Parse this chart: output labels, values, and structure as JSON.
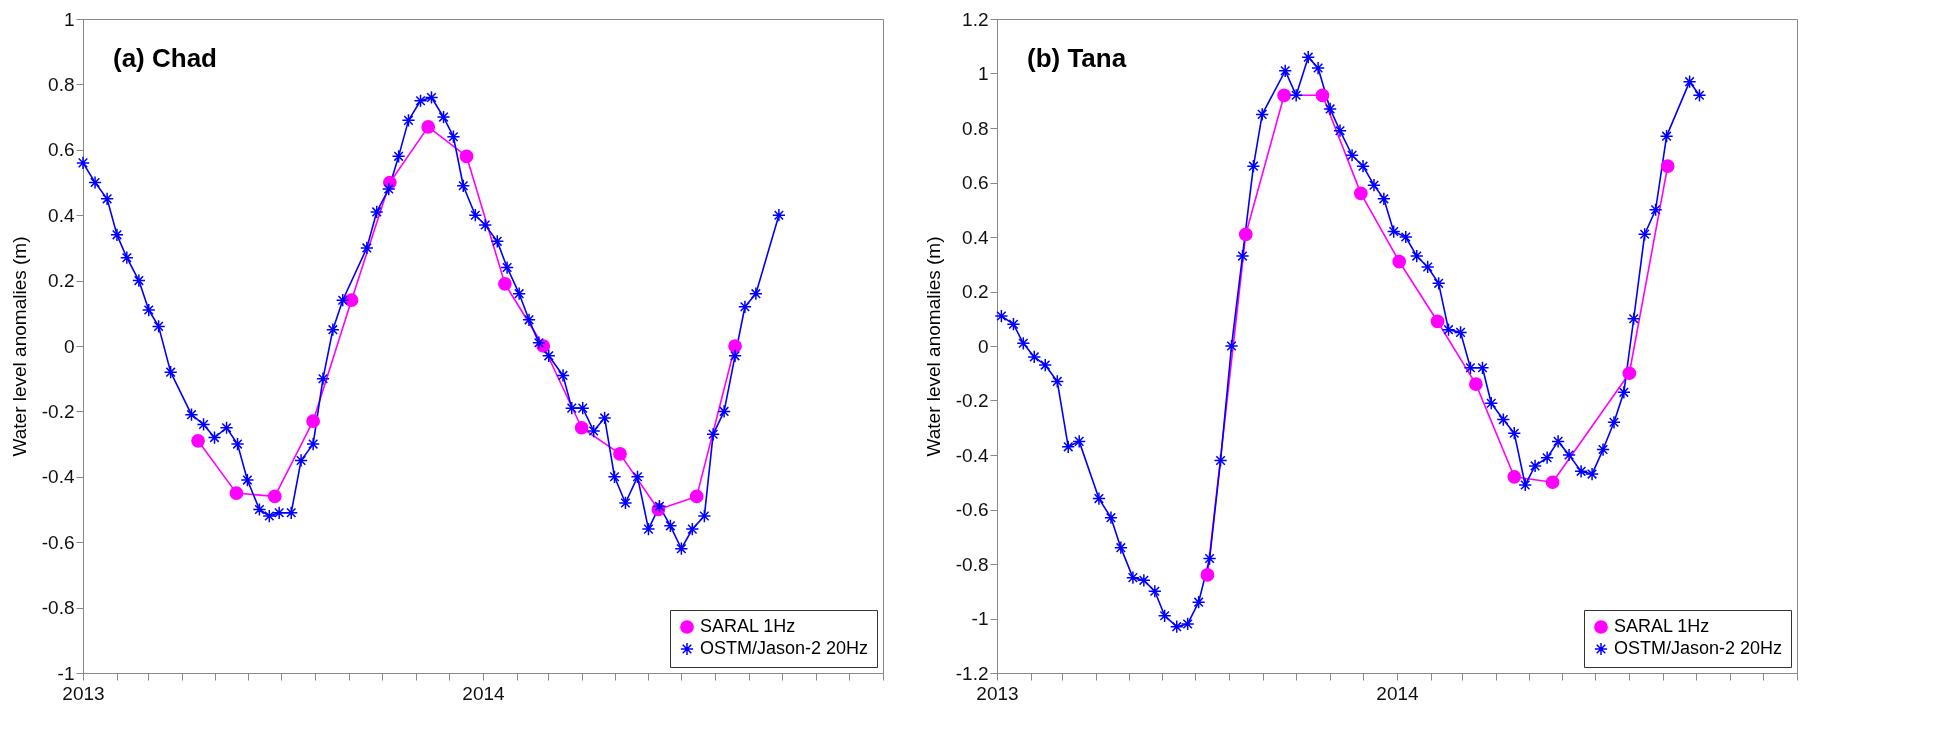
{
  "chart_data": [
    {
      "type": "line",
      "title": "(a) Chad",
      "ylabel": "Water level anomalies (m)",
      "xlim": [
        "2013",
        "2015"
      ],
      "ylim": [
        -1,
        1
      ],
      "yticks": [
        -1,
        -0.8,
        -0.6,
        -0.4,
        -0.2,
        0,
        0.2,
        0.4,
        0.6,
        0.8,
        1
      ],
      "xticks": [
        {
          "value": "2013",
          "label": "2013"
        },
        {
          "value": "2013-02",
          "label": null
        },
        {
          "value": "2013-03",
          "label": null
        },
        {
          "value": "2013-04",
          "label": null
        },
        {
          "value": "2013-05",
          "label": null
        },
        {
          "value": "2013-06",
          "label": null
        },
        {
          "value": "2013-07",
          "label": null
        },
        {
          "value": "2013-08",
          "label": null
        },
        {
          "value": "2013-09",
          "label": null
        },
        {
          "value": "2013-10",
          "label": null
        },
        {
          "value": "2013-11",
          "label": null
        },
        {
          "value": "2013-12",
          "label": null
        },
        {
          "value": "2014",
          "label": "2014"
        },
        {
          "value": "2014-02",
          "label": null
        },
        {
          "value": "2014-03",
          "label": null
        },
        {
          "value": "2014-04",
          "label": null
        },
        {
          "value": "2014-05",
          "label": null
        },
        {
          "value": "2014-06",
          "label": null
        },
        {
          "value": "2014-07",
          "label": null
        },
        {
          "value": "2014-08",
          "label": null
        },
        {
          "value": "2014-09",
          "label": null
        },
        {
          "value": "2014-10",
          "label": null
        },
        {
          "value": "2014-11",
          "label": null
        },
        {
          "value": "2014-12",
          "label": null
        },
        {
          "value": "2015",
          "label": null
        }
      ],
      "grid": false,
      "legend": "bottom right",
      "line_style": "solid",
      "series": [
        {
          "name": "SARAL 1Hz",
          "color": "#ff00ff",
          "marker": "circle",
          "x": [
            "2013-04-16",
            "2013-05-21",
            "2013-06-25",
            "2013-07-30",
            "2013-09-03",
            "2013-10-08",
            "2013-11-12",
            "2013-12-17",
            "2014-01-21",
            "2014-02-25",
            "2014-04-01",
            "2014-05-06",
            "2014-06-10",
            "2014-07-15",
            "2014-08-19"
          ],
          "values": [
            -0.29,
            -0.45,
            -0.46,
            -0.23,
            0.14,
            0.5,
            0.67,
            0.58,
            0.19,
            0.0,
            -0.25,
            -0.33,
            -0.5,
            -0.46,
            0.0
          ]
        },
        {
          "name": "OSTM/Jason-2 20Hz",
          "color": "#0000ff",
          "marker": "cross",
          "x": [
            "2013-01-01",
            "2013-01-12",
            "2013-01-23",
            "2013-02-01",
            "2013-02-10",
            "2013-02-21",
            "2013-03-02",
            "2013-03-11",
            "2013-03-22",
            "2013-04-10",
            "2013-04-21",
            "2013-05-01",
            "2013-05-12",
            "2013-05-22",
            "2013-05-31",
            "2013-06-11",
            "2013-06-20",
            "2013-06-29",
            "2013-07-10",
            "2013-07-19",
            "2013-07-30",
            "2013-08-08",
            "2013-08-17",
            "2013-08-26",
            "2013-09-17",
            "2013-09-26",
            "2013-10-07",
            "2013-10-16",
            "2013-10-25",
            "2013-11-05",
            "2013-11-15",
            "2013-11-26",
            "2013-12-05",
            "2013-12-14",
            "2013-12-25",
            "2014-01-03",
            "2014-01-14",
            "2014-01-23",
            "2014-02-03",
            "2014-02-12",
            "2014-02-21",
            "2014-03-02",
            "2014-03-15",
            "2014-03-23",
            "2014-04-02",
            "2014-04-12",
            "2014-04-22",
            "2014-05-01",
            "2014-05-11",
            "2014-05-22",
            "2014-06-01",
            "2014-06-11",
            "2014-06-21",
            "2014-07-01",
            "2014-07-11",
            "2014-07-22",
            "2014-07-30",
            "2014-08-09",
            "2014-08-19",
            "2014-08-28",
            "2014-09-07",
            "2014-09-28"
          ],
          "values": [
            0.56,
            0.5,
            0.45,
            0.34,
            0.27,
            0.2,
            0.11,
            0.06,
            -0.08,
            -0.21,
            -0.24,
            -0.28,
            -0.25,
            -0.3,
            -0.41,
            -0.5,
            -0.52,
            -0.51,
            -0.51,
            -0.35,
            -0.3,
            -0.1,
            0.05,
            0.14,
            0.3,
            0.41,
            0.48,
            0.58,
            0.69,
            0.75,
            0.76,
            0.7,
            0.64,
            0.49,
            0.4,
            0.37,
            0.32,
            0.24,
            0.16,
            0.08,
            0.01,
            -0.03,
            -0.09,
            -0.19,
            -0.19,
            -0.26,
            -0.22,
            -0.4,
            -0.48,
            -0.4,
            -0.56,
            -0.49,
            -0.55,
            -0.62,
            -0.56,
            -0.52,
            -0.27,
            -0.2,
            -0.03,
            0.12,
            0.16,
            0.4
          ]
        }
      ]
    },
    {
      "type": "line",
      "title": "(b) Tana",
      "ylabel": "Water level anomalies (m)",
      "xlim": [
        "2013",
        "2015"
      ],
      "ylim": [
        -1.2,
        1.2
      ],
      "yticks": [
        -1.2,
        -1,
        -0.8,
        -0.6,
        -0.4,
        -0.2,
        0,
        0.2,
        0.4,
        0.6,
        0.8,
        1,
        1.2
      ],
      "xticks": [
        {
          "value": "2013",
          "label": "2013"
        },
        {
          "value": "2013-02",
          "label": null
        },
        {
          "value": "2013-03",
          "label": null
        },
        {
          "value": "2013-04",
          "label": null
        },
        {
          "value": "2013-05",
          "label": null
        },
        {
          "value": "2013-06",
          "label": null
        },
        {
          "value": "2013-07",
          "label": null
        },
        {
          "value": "2013-08",
          "label": null
        },
        {
          "value": "2013-09",
          "label": null
        },
        {
          "value": "2013-10",
          "label": null
        },
        {
          "value": "2013-11",
          "label": null
        },
        {
          "value": "2013-12",
          "label": null
        },
        {
          "value": "2014",
          "label": "2014"
        },
        {
          "value": "2014-02",
          "label": null
        },
        {
          "value": "2014-03",
          "label": null
        },
        {
          "value": "2014-04",
          "label": null
        },
        {
          "value": "2014-05",
          "label": null
        },
        {
          "value": "2014-06",
          "label": null
        },
        {
          "value": "2014-07",
          "label": null
        },
        {
          "value": "2014-08",
          "label": null
        },
        {
          "value": "2014-09",
          "label": null
        },
        {
          "value": "2014-10",
          "label": null
        },
        {
          "value": "2014-11",
          "label": null
        },
        {
          "value": "2014-12",
          "label": null
        },
        {
          "value": "2015",
          "label": null
        }
      ],
      "grid": false,
      "legend": "bottom right",
      "line_style": "solid",
      "series": [
        {
          "name": "SARAL 1Hz",
          "color": "#ff00ff",
          "marker": "circle",
          "x": [
            "2013-07-12",
            "2013-08-16",
            "2013-09-20",
            "2013-10-25",
            "2013-11-29",
            "2014-01-03",
            "2014-02-07",
            "2014-03-14",
            "2014-04-18",
            "2014-05-23",
            "2014-08-01",
            "2014-09-05"
          ],
          "values": [
            -0.84,
            0.41,
            0.92,
            0.92,
            0.56,
            0.31,
            0.09,
            -0.14,
            -0.48,
            -0.5,
            -0.1,
            0.66
          ]
        },
        {
          "name": "OSTM/Jason-2 20Hz",
          "color": "#0000ff",
          "marker": "cross",
          "x": [
            "2013-01-05",
            "2013-01-16",
            "2013-01-25",
            "2013-02-04",
            "2013-02-14",
            "2013-02-25",
            "2013-03-07",
            "2013-03-17",
            "2013-04-04",
            "2013-04-15",
            "2013-04-24",
            "2013-05-05",
            "2013-05-15",
            "2013-05-25",
            "2013-06-03",
            "2013-06-14",
            "2013-06-24",
            "2013-07-04",
            "2013-07-14",
            "2013-07-24",
            "2013-08-03",
            "2013-08-13",
            "2013-08-23",
            "2013-08-31",
            "2013-09-21",
            "2013-10-01",
            "2013-10-12",
            "2013-10-21",
            "2013-11-01",
            "2013-11-10",
            "2013-11-21",
            "2013-12-01",
            "2013-12-11",
            "2013-12-20",
            "2013-12-29",
            "2014-01-09",
            "2014-01-19",
            "2014-01-29",
            "2014-02-08",
            "2014-02-17",
            "2014-02-28",
            "2014-03-09",
            "2014-03-20",
            "2014-03-28",
            "2014-04-08",
            "2014-04-18",
            "2014-04-28",
            "2014-05-07",
            "2014-05-18",
            "2014-05-28",
            "2014-06-07",
            "2014-06-18",
            "2014-06-28",
            "2014-07-08",
            "2014-07-18",
            "2014-07-27",
            "2014-08-05",
            "2014-08-15",
            "2014-08-25",
            "2014-09-04",
            "2014-09-25",
            "2014-10-04"
          ],
          "values": [
            0.11,
            0.08,
            0.01,
            -0.04,
            -0.07,
            -0.13,
            -0.37,
            -0.35,
            -0.56,
            -0.63,
            -0.74,
            -0.85,
            -0.86,
            -0.9,
            -0.99,
            -1.03,
            -1.02,
            -0.94,
            -0.78,
            -0.42,
            0.0,
            0.33,
            0.66,
            0.85,
            1.01,
            0.92,
            1.06,
            1.02,
            0.87,
            0.79,
            0.7,
            0.66,
            0.59,
            0.54,
            0.42,
            0.4,
            0.33,
            0.29,
            0.23,
            0.06,
            0.05,
            -0.08,
            -0.08,
            -0.21,
            -0.27,
            -0.32,
            -0.51,
            -0.44,
            -0.41,
            -0.35,
            -0.4,
            -0.46,
            -0.47,
            -0.38,
            -0.28,
            -0.17,
            0.1,
            0.41,
            0.5,
            0.77,
            0.97,
            0.92
          ]
        }
      ]
    }
  ]
}
